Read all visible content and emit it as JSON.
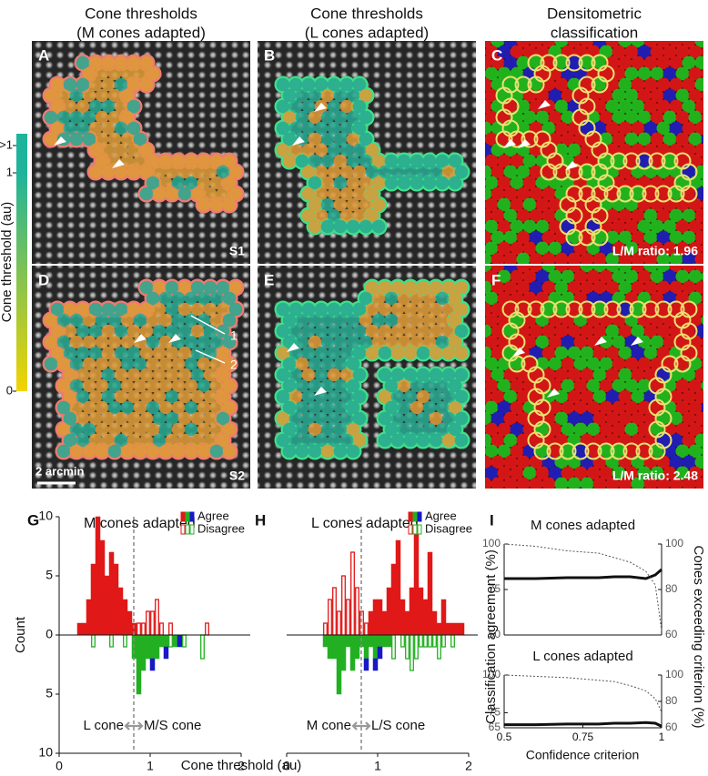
{
  "images": {
    "columns": [
      [
        "Cone thresholds",
        "(M cones adapted)"
      ],
      [
        "Cone thresholds",
        "(L cones adapted)"
      ],
      [
        "Densitometric",
        "classification"
      ]
    ],
    "panels": [
      {
        "letter": "A",
        "label": "S1"
      },
      {
        "letter": "B"
      },
      {
        "letter": "C",
        "label": "L/M ratio: 1.96"
      },
      {
        "letter": "D",
        "label": "S2",
        "scale_bar": "2 arcmin",
        "annotations": [
          "1",
          "2"
        ]
      },
      {
        "letter": "E"
      },
      {
        "letter": "F",
        "label": "L/M ratio: 2.48"
      }
    ]
  },
  "colorbar": {
    "label": "Cone threshold (au)",
    "ticks": [
      ">1",
      "1",
      "0"
    ]
  },
  "panel_I": {
    "letter": "I",
    "ylabel": "Classification agreement (%)",
    "y2label": "Cones exceeding criterion (%)",
    "xlabel": "Confidence criterion"
  },
  "chart_data": [
    {
      "type": "histogram",
      "letter": "G",
      "title": "M cones adapted",
      "xlabel": "Cone threshold (au)",
      "ylabel": "Count",
      "bins": [
        0,
        0.05,
        0.1,
        0.15,
        0.2,
        0.25,
        0.3,
        0.35,
        0.4,
        0.45,
        0.5,
        0.55,
        0.6,
        0.65,
        0.7,
        0.75,
        0.8,
        0.85,
        0.9,
        0.95,
        1,
        1.05,
        1.1,
        1.15,
        1.2,
        1.25,
        1.3,
        1.35,
        1.4,
        1.45,
        1.5,
        1.55,
        1.6,
        1.65,
        1.7,
        1.75,
        1.8,
        1.85,
        1.9,
        1.95,
        2
      ],
      "series": [
        {
          "color": "#e01818",
          "style": "filled",
          "values": [
            0,
            0,
            0,
            0,
            1,
            1,
            3,
            6,
            10,
            8,
            5,
            7,
            6,
            4,
            3,
            2,
            1,
            0,
            0,
            0,
            0,
            0,
            0,
            0,
            0,
            0,
            0,
            0,
            0,
            0,
            0,
            0,
            0,
            0,
            0,
            0,
            0,
            0,
            0,
            0
          ]
        },
        {
          "color": "#e01818",
          "style": "outline",
          "values": [
            0,
            0,
            0,
            0,
            0,
            0,
            0,
            0,
            0,
            0,
            0,
            0,
            0,
            0,
            0,
            0,
            0,
            1,
            1,
            2,
            2,
            3,
            1,
            0,
            1,
            0,
            0,
            0,
            0,
            0,
            0,
            0,
            1,
            0,
            0,
            0,
            0,
            0,
            0,
            0
          ]
        },
        {
          "color": "#22b022",
          "style": "filled",
          "values": [
            0,
            0,
            0,
            0,
            0,
            0,
            0,
            0,
            0,
            0,
            0,
            0,
            0,
            0,
            0,
            0,
            -2,
            -5,
            -3,
            -2,
            -2,
            -2,
            -1,
            -1,
            0,
            -1,
            0,
            0,
            0,
            0,
            0,
            0,
            0,
            0,
            0,
            0,
            0,
            0,
            0,
            0
          ]
        },
        {
          "color": "#1818c8",
          "style": "filled",
          "values": [
            0,
            0,
            0,
            0,
            0,
            0,
            0,
            0,
            0,
            0,
            0,
            0,
            0,
            0,
            0,
            0,
            0,
            0,
            0,
            0,
            -1,
            0,
            0,
            -1,
            0,
            0,
            -1,
            0,
            0,
            0,
            0,
            0,
            0,
            0,
            0,
            0,
            0,
            0,
            0,
            0
          ]
        },
        {
          "color": "#22b022",
          "style": "outline",
          "values": [
            0,
            0,
            0,
            0,
            0,
            0,
            0,
            -1,
            0,
            0,
            0,
            -1,
            0,
            0,
            -1,
            0,
            0,
            0,
            0,
            0,
            0,
            0,
            0,
            0,
            -1,
            0,
            0,
            -1,
            0,
            0,
            0,
            -2,
            0,
            0,
            0,
            0,
            0,
            0,
            0,
            0
          ]
        }
      ],
      "legend": [
        {
          "label": "Agree",
          "colors": [
            "#e01818",
            "#22b022",
            "#1818c8"
          ],
          "style": "filled"
        },
        {
          "label": "Disagree",
          "colors": [
            "#e01818",
            "#22b022",
            "#22b022"
          ],
          "style": "outline"
        }
      ],
      "xlim": [
        0,
        2
      ],
      "xticks": [
        0,
        1,
        2
      ],
      "ylim": [
        -10,
        10
      ],
      "yticks": [
        {
          "value": -10,
          "label": "10"
        },
        {
          "value": -5,
          "label": "5"
        },
        0,
        5,
        10
      ],
      "divider": 0.82,
      "annotations": [
        "L cone",
        "M/S cone"
      ]
    },
    {
      "type": "histogram",
      "letter": "H",
      "title": "L cones adapted",
      "bins": [
        0,
        0.05,
        0.1,
        0.15,
        0.2,
        0.25,
        0.3,
        0.35,
        0.4,
        0.45,
        0.5,
        0.55,
        0.6,
        0.65,
        0.7,
        0.75,
        0.8,
        0.85,
        0.9,
        0.95,
        1,
        1.05,
        1.1,
        1.15,
        1.2,
        1.25,
        1.3,
        1.35,
        1.4,
        1.45,
        1.5,
        1.55,
        1.6,
        1.65,
        1.7,
        1.75,
        1.8,
        1.85,
        1.9,
        1.95,
        2
      ],
      "series": [
        {
          "color": "#e01818",
          "style": "filled",
          "values": [
            0,
            0,
            0,
            0,
            0,
            0,
            0,
            0,
            0,
            0,
            0,
            0,
            0,
            0,
            0,
            0,
            0,
            0,
            2,
            3,
            3,
            2,
            4,
            6,
            8,
            3,
            2,
            4,
            9,
            4,
            3,
            7,
            2,
            1,
            3,
            1,
            1,
            1,
            1,
            0
          ]
        },
        {
          "color": "#e01818",
          "style": "outline",
          "values": [
            0,
            0,
            0,
            0,
            0,
            0,
            0,
            0,
            1,
            3,
            4,
            2,
            5,
            3,
            7,
            4,
            2,
            1,
            0,
            0,
            0,
            0,
            0,
            0,
            0,
            0,
            0,
            0,
            0,
            0,
            0,
            0,
            0,
            0,
            0,
            0,
            0,
            0,
            0,
            0
          ]
        },
        {
          "color": "#22b022",
          "style": "filled",
          "values": [
            0,
            0,
            0,
            0,
            0,
            0,
            0,
            0,
            -1,
            -2,
            -2,
            -5,
            -3,
            -1,
            -3,
            -2,
            -1,
            -2,
            -1,
            -2,
            -1,
            -1,
            -1,
            0,
            0,
            0,
            0,
            0,
            0,
            0,
            0,
            0,
            0,
            0,
            0,
            0,
            0,
            0,
            0,
            0
          ]
        },
        {
          "color": "#1818c8",
          "style": "filled",
          "values": [
            0,
            0,
            0,
            0,
            0,
            0,
            0,
            0,
            0,
            0,
            0,
            0,
            0,
            0,
            0,
            0,
            0,
            -1,
            0,
            -1,
            -1,
            0,
            0,
            0,
            0,
            0,
            0,
            0,
            0,
            0,
            0,
            0,
            0,
            0,
            0,
            0,
            0,
            0,
            0,
            0
          ]
        },
        {
          "color": "#22b022",
          "style": "outline",
          "values": [
            0,
            0,
            0,
            0,
            0,
            0,
            0,
            0,
            0,
            0,
            0,
            0,
            0,
            0,
            0,
            0,
            0,
            0,
            0,
            0,
            0,
            0,
            0,
            -2,
            0,
            -1,
            -2,
            -3,
            -2,
            -1,
            -1,
            -1,
            -1,
            -2,
            -1,
            0,
            -1,
            0,
            0,
            0
          ]
        }
      ],
      "legend": [
        {
          "label": "Agree",
          "colors": [
            "#e01818",
            "#22b022",
            "#1818c8"
          ],
          "style": "filled"
        },
        {
          "label": "Disagree",
          "colors": [
            "#e01818",
            "#22b022",
            "#22b022"
          ],
          "style": "outline"
        }
      ],
      "xlim": [
        0,
        2
      ],
      "xticks": [
        0,
        1,
        2
      ],
      "ylim": [
        -10,
        10
      ],
      "divider": 0.82,
      "annotations": [
        "M cone",
        "L/S cone"
      ]
    },
    {
      "type": "line",
      "title": "M cones adapted",
      "x": [
        0.5,
        0.6,
        0.7,
        0.8,
        0.85,
        0.9,
        0.95,
        0.98,
        1
      ],
      "series": [
        {
          "color": "#111111",
          "style": "solid",
          "values": [
            81,
            81,
            81.5,
            81.5,
            82,
            82,
            81,
            83,
            86
          ]
        },
        {
          "color": "#555555",
          "style": "dashed",
          "axis": "y2",
          "values": [
            100,
            99,
            97,
            96,
            94,
            92,
            88,
            82,
            62
          ]
        }
      ],
      "xlim": [
        0.5,
        1
      ],
      "ylim": [
        50,
        100
      ],
      "yticks": [
        50,
        75,
        100
      ],
      "y2lim": [
        60,
        100
      ],
      "y2ticks": [
        60,
        80,
        100
      ]
    },
    {
      "type": "line",
      "title": "L cones adapted",
      "x": [
        0.5,
        0.6,
        0.7,
        0.8,
        0.85,
        0.9,
        0.95,
        0.98,
        1
      ],
      "series": [
        {
          "color": "#111111",
          "style": "solid",
          "values": [
            67,
            67,
            67.5,
            67.5,
            68,
            68,
            68.5,
            68,
            66
          ]
        },
        {
          "color": "#555555",
          "style": "dashed",
          "axis": "y2",
          "values": [
            100,
            99,
            98,
            96,
            95,
            92,
            88,
            82,
            72
          ]
        }
      ],
      "xlim": [
        0.5,
        1
      ],
      "xticks": [
        0.5,
        0.75,
        1
      ],
      "ylim": [
        65,
        100
      ],
      "yticks": [
        65,
        75,
        100
      ],
      "y2lim": [
        60,
        100
      ],
      "y2ticks": [
        60,
        80,
        100
      ]
    }
  ]
}
